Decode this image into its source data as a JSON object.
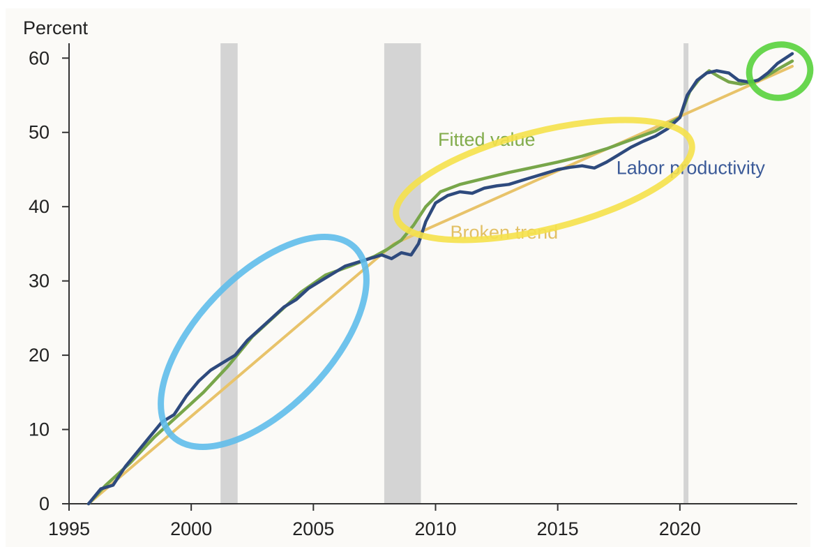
{
  "chart_data": {
    "type": "line",
    "ylabel": "Percent",
    "xlim": [
      1995,
      2024.8
    ],
    "ylim": [
      0,
      62
    ],
    "x_ticks": [
      1995,
      2000,
      2005,
      2010,
      2015,
      2020
    ],
    "y_ticks": [
      0,
      10,
      20,
      30,
      40,
      50,
      60
    ],
    "grid": false,
    "recession_bands": [
      {
        "start": 2001.2,
        "end": 2001.9
      },
      {
        "start": 2007.9,
        "end": 2009.4
      },
      {
        "start": 2020.15,
        "end": 2020.35
      }
    ],
    "series": [
      {
        "name": "Labor productivity",
        "color": "#2e4a7d",
        "points": [
          [
            1995.8,
            0
          ],
          [
            1996.3,
            2
          ],
          [
            1996.8,
            2.5
          ],
          [
            1997.3,
            5
          ],
          [
            1997.8,
            7
          ],
          [
            1998.3,
            9
          ],
          [
            1998.8,
            11
          ],
          [
            1999.3,
            12
          ],
          [
            1999.8,
            14.5
          ],
          [
            2000.3,
            16.5
          ],
          [
            2000.8,
            18
          ],
          [
            2001.3,
            19
          ],
          [
            2001.8,
            20
          ],
          [
            2002.3,
            22
          ],
          [
            2002.8,
            23.5
          ],
          [
            2003.3,
            25
          ],
          [
            2003.8,
            26.5
          ],
          [
            2004.3,
            27.5
          ],
          [
            2004.8,
            29
          ],
          [
            2005.3,
            30
          ],
          [
            2005.8,
            31
          ],
          [
            2006.3,
            32
          ],
          [
            2006.8,
            32.5
          ],
          [
            2007.3,
            33
          ],
          [
            2007.8,
            33.5
          ],
          [
            2008.2,
            33
          ],
          [
            2008.6,
            33.8
          ],
          [
            2009.0,
            33.5
          ],
          [
            2009.3,
            35
          ],
          [
            2009.6,
            38
          ],
          [
            2010.0,
            40.5
          ],
          [
            2010.5,
            41.5
          ],
          [
            2011.0,
            42
          ],
          [
            2011.5,
            41.8
          ],
          [
            2012.0,
            42.5
          ],
          [
            2012.5,
            42.8
          ],
          [
            2013.0,
            43
          ],
          [
            2013.5,
            43.5
          ],
          [
            2014.0,
            44
          ],
          [
            2014.5,
            44.5
          ],
          [
            2015.0,
            45
          ],
          [
            2015.5,
            45.3
          ],
          [
            2016.0,
            45.5
          ],
          [
            2016.5,
            45.2
          ],
          [
            2017.0,
            46
          ],
          [
            2017.5,
            47
          ],
          [
            2018.0,
            48
          ],
          [
            2018.5,
            48.8
          ],
          [
            2019.0,
            49.5
          ],
          [
            2019.5,
            50.5
          ],
          [
            2020.0,
            52
          ],
          [
            2020.3,
            55
          ],
          [
            2020.7,
            57
          ],
          [
            2021.1,
            58
          ],
          [
            2021.5,
            58.3
          ],
          [
            2022.0,
            58
          ],
          [
            2022.4,
            57
          ],
          [
            2022.8,
            56.8
          ],
          [
            2023.2,
            57
          ],
          [
            2023.6,
            58
          ],
          [
            2024.0,
            59.3
          ],
          [
            2024.6,
            60.6
          ]
        ]
      },
      {
        "name": "Fitted value",
        "color": "#78a64a",
        "points": [
          [
            1995.8,
            0
          ],
          [
            1996.5,
            2.5
          ],
          [
            1997.5,
            5.5
          ],
          [
            1998.5,
            9
          ],
          [
            1999.5,
            12
          ],
          [
            2000.5,
            15
          ],
          [
            2001.5,
            18.5
          ],
          [
            2002.5,
            22.5
          ],
          [
            2003.5,
            25.5
          ],
          [
            2004.5,
            28.5
          ],
          [
            2005.5,
            30.8
          ],
          [
            2006.5,
            32
          ],
          [
            2007.5,
            33.3
          ],
          [
            2008.0,
            34.2
          ],
          [
            2008.6,
            35.5
          ],
          [
            2009.1,
            37.5
          ],
          [
            2009.6,
            40
          ],
          [
            2010.2,
            42
          ],
          [
            2011.0,
            43
          ],
          [
            2012.0,
            43.8
          ],
          [
            2013.0,
            44.6
          ],
          [
            2014.0,
            45.3
          ],
          [
            2015.0,
            46
          ],
          [
            2016.0,
            46.8
          ],
          [
            2017.0,
            47.8
          ],
          [
            2018.0,
            49
          ],
          [
            2019.0,
            50.2
          ],
          [
            2020.0,
            52
          ],
          [
            2020.4,
            55.5
          ],
          [
            2020.8,
            57.2
          ],
          [
            2021.2,
            58.3
          ],
          [
            2021.6,
            57.5
          ],
          [
            2022.0,
            56.8
          ],
          [
            2022.5,
            56.5
          ],
          [
            2023.0,
            56.8
          ],
          [
            2023.5,
            57.5
          ],
          [
            2024.0,
            58.5
          ],
          [
            2024.6,
            59.6
          ]
        ]
      },
      {
        "name": "Broken trend",
        "color": "#e8c36a",
        "points": [
          [
            1995.8,
            0
          ],
          [
            2008.3,
            35
          ],
          [
            2024.6,
            58.9
          ]
        ]
      }
    ],
    "annotations": [
      {
        "text": "Fitted value",
        "x": 2010.1,
        "y": 48.2,
        "color": "#82ac4c"
      },
      {
        "text": "Labor productivity",
        "x": 2017.4,
        "y": 44.4,
        "color": "#3b5a98"
      },
      {
        "text": "Broken trend",
        "x": 2010.6,
        "y": 35.7,
        "color": "#e2c064"
      }
    ],
    "hand_drawn_marks": [
      {
        "shape": "ellipse",
        "color": "#5fbcea",
        "description": "circle around 1998-2008 segment"
      },
      {
        "shape": "ellipse",
        "color": "#f5e14a",
        "description": "circle around 2008-2020 segment"
      },
      {
        "shape": "ellipse",
        "color": "#58d23c",
        "description": "circle around 2023-2024 segment"
      }
    ]
  }
}
